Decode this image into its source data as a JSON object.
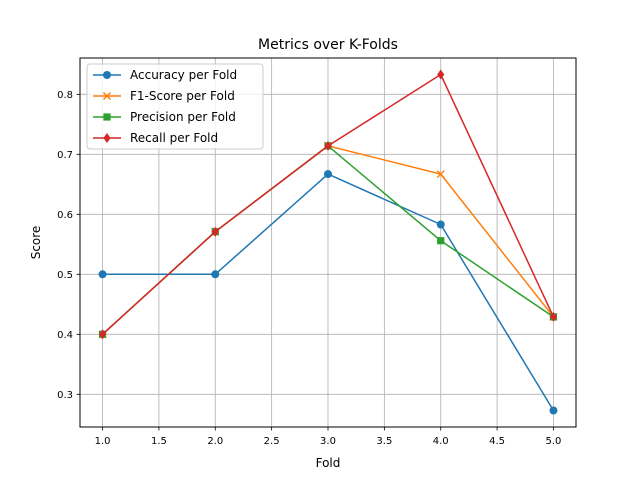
{
  "chart_data": {
    "type": "line",
    "title": "Metrics over K-Folds",
    "xlabel": "Fold",
    "ylabel": "Score",
    "xlim": [
      0.8,
      5.2
    ],
    "ylim": [
      0.2455,
      0.8605
    ],
    "xticks": [
      "1.0",
      "1.5",
      "2.0",
      "2.5",
      "3.0",
      "3.5",
      "4.0",
      "4.5",
      "5.0"
    ],
    "yticks": [
      "0.3",
      "0.4",
      "0.5",
      "0.6",
      "0.7",
      "0.8"
    ],
    "grid": true,
    "legend_position": "upper-left",
    "x": [
      1,
      2,
      3,
      4,
      5
    ],
    "series": [
      {
        "name": "Accuracy per Fold",
        "values": [
          0.5,
          0.5,
          0.667,
          0.583,
          0.273
        ],
        "color": "#1f77b4",
        "marker": "circle"
      },
      {
        "name": "F1-Score per Fold",
        "values": [
          0.4,
          0.571,
          0.714,
          0.667,
          0.429
        ],
        "color": "#ff7f0e",
        "marker": "x"
      },
      {
        "name": "Precision per Fold",
        "values": [
          0.4,
          0.571,
          0.714,
          0.556,
          0.429
        ],
        "color": "#2ca02c",
        "marker": "square"
      },
      {
        "name": "Recall per Fold",
        "values": [
          0.4,
          0.571,
          0.714,
          0.833,
          0.429
        ],
        "color": "#d62728",
        "marker": "diamond"
      }
    ]
  }
}
